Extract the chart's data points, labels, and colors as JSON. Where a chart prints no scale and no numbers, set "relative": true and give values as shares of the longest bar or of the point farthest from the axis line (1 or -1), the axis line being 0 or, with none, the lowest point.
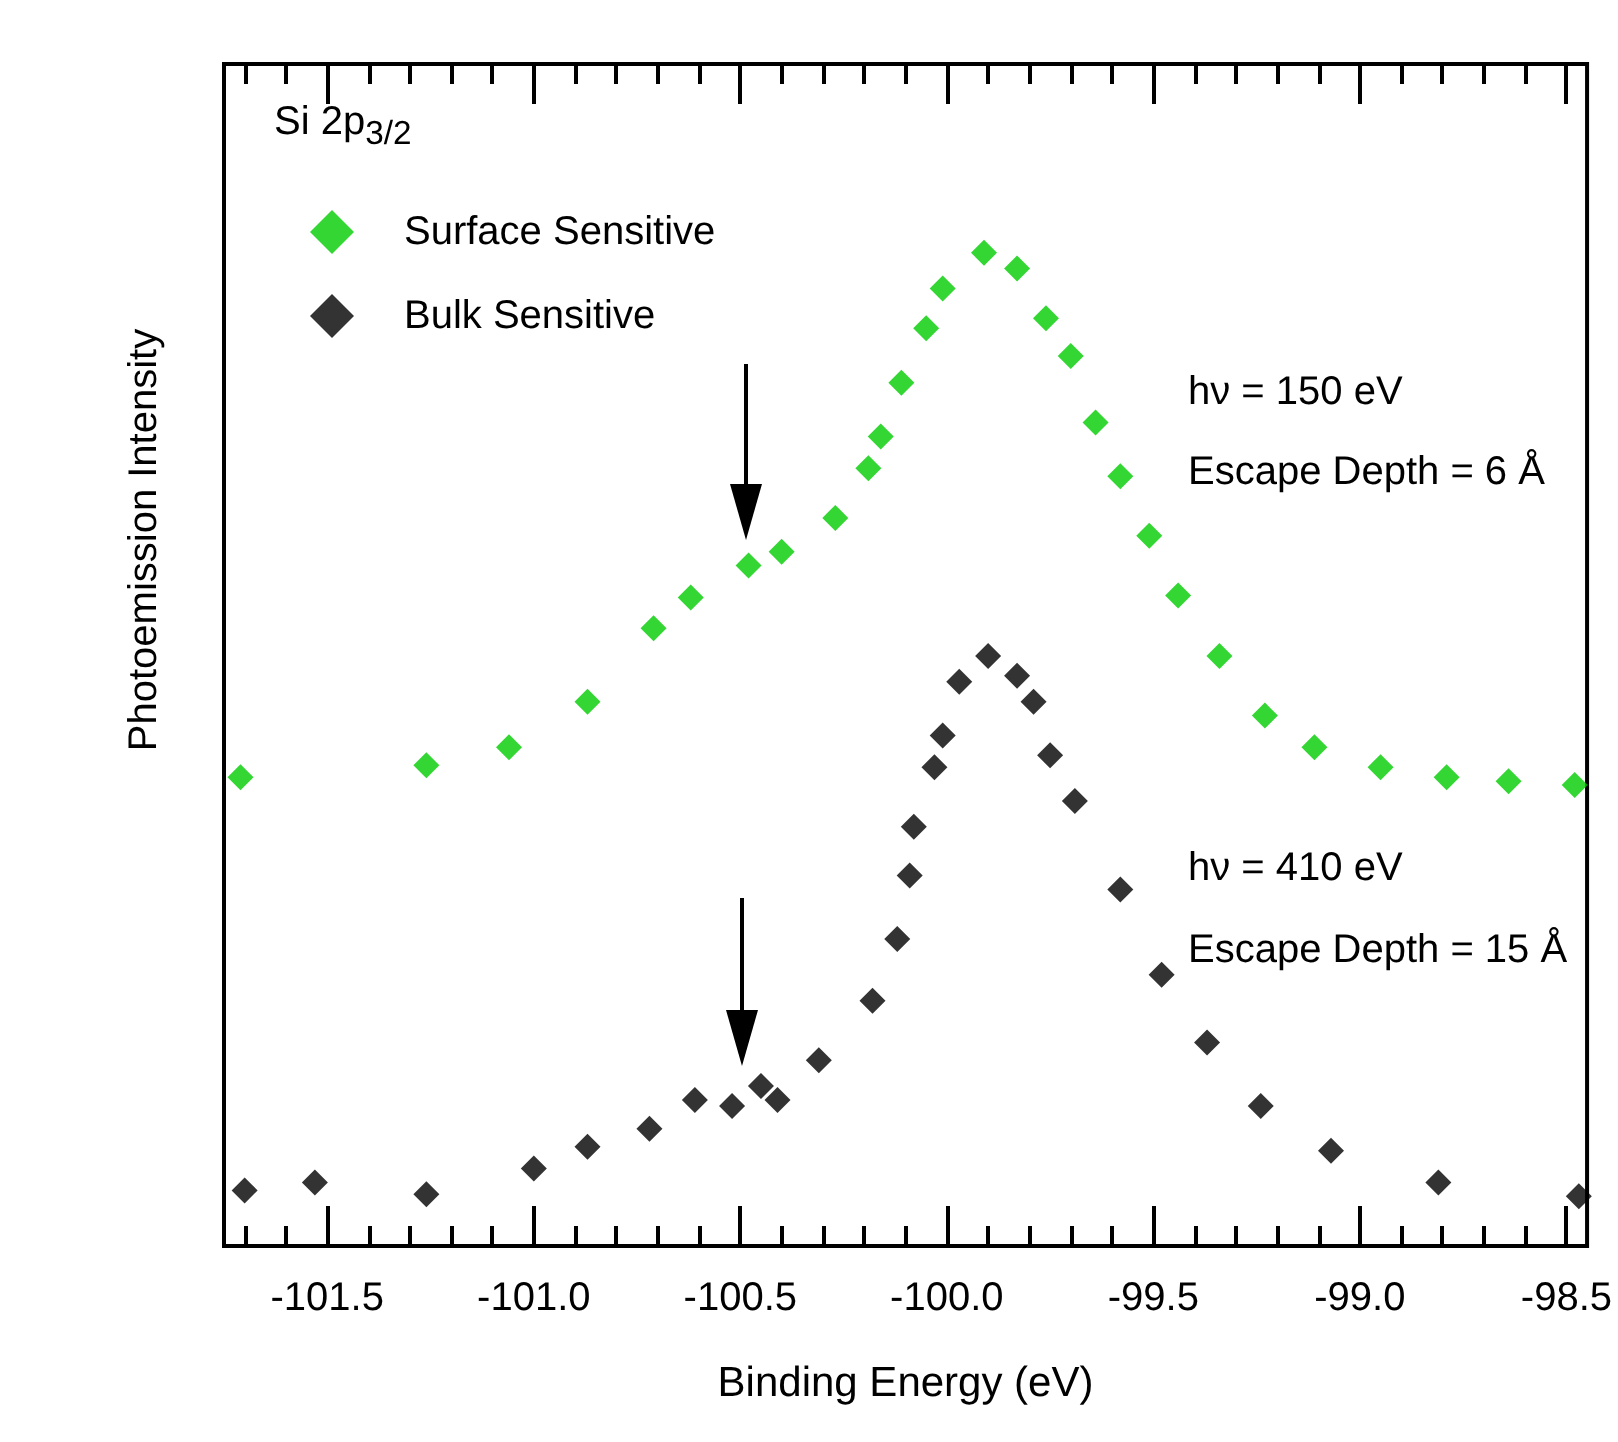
{
  "chart_data": {
    "type": "scatter",
    "title": "Si 2p$_{3/2}$",
    "xlabel": "Binding Energy (eV)",
    "ylabel": "Photoemission Intensity",
    "relative": true,
    "marker": "diamond",
    "legend": "top left",
    "grid": false,
    "xlim": [
      -101.75,
      -98.45
    ],
    "xticks": [
      -101.5,
      {
        "value": -101,
        "label": "-101.0"
      },
      -100.5,
      {
        "value": -100,
        "label": "-100.0"
      },
      -99.5,
      {
        "value": -99,
        "label": "-99.0"
      },
      -98.5
    ],
    "annotations": [
      "hν = 150 eV",
      "Escape Depth = 6 Å",
      "hν = 410 eV",
      "Escape Depth = 15 Å"
    ],
    "series": [
      {
        "name": "Surface Sensitive",
        "color": "#00cc00",
        "x": [
          -101.71,
          -101.26,
          -101.06,
          -100.87,
          -100.71,
          -100.62,
          -100.48,
          -100.4,
          -100.27,
          -100.19,
          -100.16,
          -100.11,
          -100.05,
          -100.01,
          -99.91,
          -99.83,
          -99.76,
          -99.7,
          -99.64,
          -99.58,
          -99.51,
          -99.44,
          -99.34,
          -99.23,
          -99.11,
          -98.95,
          -98.79,
          -98.64,
          -98.48
        ],
        "values": [
          0.472,
          0.484,
          0.502,
          0.548,
          0.622,
          0.653,
          0.685,
          0.699,
          0.733,
          0.783,
          0.815,
          0.869,
          0.924,
          0.964,
          1,
          0.984,
          0.934,
          0.896,
          0.829,
          0.775,
          0.715,
          0.655,
          0.594,
          0.534,
          0.502,
          0.482,
          0.472,
          0.468,
          0.464
        ]
      },
      {
        "name": "Bulk Sensitive",
        "color": "#000000",
        "x": [
          -101.7,
          -101.53,
          -101.26,
          -101.0,
          -100.87,
          -100.72,
          -100.61,
          -100.52,
          -100.45,
          -100.41,
          -100.31,
          -100.18,
          -100.12,
          -100.09,
          -100.08,
          -100.03,
          -100.01,
          -99.97,
          -99.9,
          -99.83,
          -99.79,
          -99.75,
          -99.69,
          -99.58,
          -99.48,
          -99.37,
          -99.24,
          -99.07,
          -98.81,
          -98.47
        ],
        "values": [
          0.056,
          0.064,
          0.052,
          0.078,
          0.1,
          0.118,
          0.147,
          0.141,
          0.161,
          0.147,
          0.187,
          0.247,
          0.309,
          0.373,
          0.422,
          0.482,
          0.514,
          0.568,
          0.594,
          0.574,
          0.548,
          0.494,
          0.448,
          0.359,
          0.273,
          0.205,
          0.141,
          0.096,
          0.064,
          0.05
        ]
      }
    ]
  }
}
